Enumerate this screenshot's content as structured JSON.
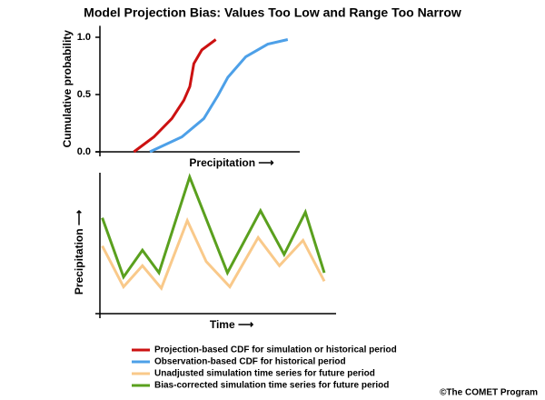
{
  "title": "Model Projection Bias: Values Too Low and Range Too Narrow",
  "credit": "©The COMET Program",
  "chart_data": [
    {
      "type": "line",
      "x_label": "Precipitation ⟶",
      "y_label": "Cumulative probability",
      "xlim": [
        0,
        100
      ],
      "ylim": [
        0,
        1.1
      ],
      "yticks": [
        {
          "value": 0,
          "label": "0.0"
        },
        {
          "value": 0.5,
          "label": "0.5"
        },
        {
          "value": 1,
          "label": "1.0"
        }
      ],
      "series": [
        {
          "name": "Projection-based CDF for simulation or historical period",
          "color": "#cc1111",
          "x": [
            17,
            27,
            36,
            42,
            45,
            47,
            51,
            58
          ],
          "values": [
            0,
            0.13,
            0.29,
            0.45,
            0.57,
            0.77,
            0.89,
            0.98
          ]
        },
        {
          "name": "Observation-based CDF for historical period",
          "color": "#4da0e8",
          "x": [
            25,
            41,
            52,
            59,
            64,
            73,
            84,
            94
          ],
          "values": [
            0,
            0.13,
            0.29,
            0.49,
            0.65,
            0.83,
            0.94,
            0.98
          ]
        }
      ]
    },
    {
      "type": "line",
      "x_label": "Time ⟶",
      "y_label": "Precipitation ⟶",
      "xlim": [
        0,
        100
      ],
      "ylim": [
        0,
        100
      ],
      "series": [
        {
          "name": "Unadjusted simulation time series for future period",
          "color": "#f9c98a",
          "x": [
            1,
            10,
            18,
            26,
            37,
            45,
            55,
            67,
            76,
            86,
            95
          ],
          "values": [
            48,
            19,
            34,
            18,
            66,
            37,
            19,
            54,
            34,
            52,
            23
          ]
        },
        {
          "name": "Bias-corrected simulation time series for future period",
          "color": "#5aa01e",
          "x": [
            1,
            10,
            18,
            25,
            38,
            54,
            68,
            78,
            87,
            95
          ],
          "values": [
            68,
            26,
            45,
            29,
            97,
            29,
            73,
            42,
            72,
            29
          ]
        }
      ]
    }
  ]
}
